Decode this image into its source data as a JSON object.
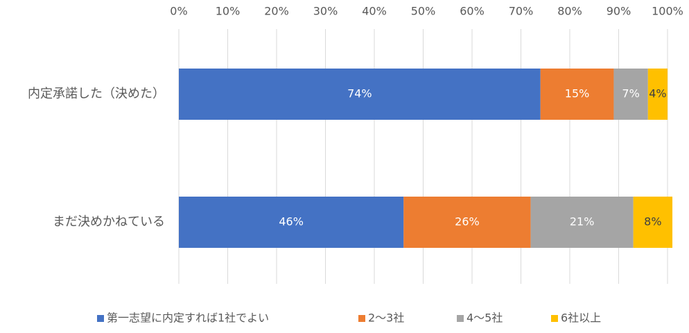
{
  "chart_data": {
    "type": "stacked-bar-horizontal",
    "categories": [
      "内定承諾した（決めた）",
      "まだ決めかねている"
    ],
    "series": [
      {
        "name": "第一志望に内定すれば1社でよい",
        "color": "#4472c4",
        "label_color": "#ffffff",
        "values": [
          74,
          46
        ],
        "value_labels": [
          "74%",
          "46%"
        ]
      },
      {
        "name": "2〜3社",
        "color": "#ed7d31",
        "label_color": "#ffffff",
        "values": [
          15,
          26
        ],
        "value_labels": [
          "15%",
          "26%"
        ]
      },
      {
        "name": "4〜5社",
        "color": "#a5a5a5",
        "label_color": "#ffffff",
        "values": [
          7,
          21
        ],
        "value_labels": [
          "7%",
          "21%"
        ]
      },
      {
        "name": "6社以上",
        "color": "#ffc000",
        "label_color": "#404040",
        "values": [
          4,
          8
        ],
        "value_labels": [
          "4%",
          "8%"
        ]
      }
    ],
    "xlim": [
      0,
      100
    ],
    "xticks": [
      {
        "value": 0,
        "label": "0%"
      },
      {
        "value": 10,
        "label": "10%"
      },
      {
        "value": 20,
        "label": "20%"
      },
      {
        "value": 30,
        "label": "30%"
      },
      {
        "value": 40,
        "label": "40%"
      },
      {
        "value": 50,
        "label": "50%"
      },
      {
        "value": 60,
        "label": "60%"
      },
      {
        "value": 70,
        "label": "70%"
      },
      {
        "value": 80,
        "label": "80%"
      },
      {
        "value": 90,
        "label": "90%"
      },
      {
        "value": 100,
        "label": "100%"
      }
    ],
    "grid": true,
    "legend": "bottom"
  }
}
